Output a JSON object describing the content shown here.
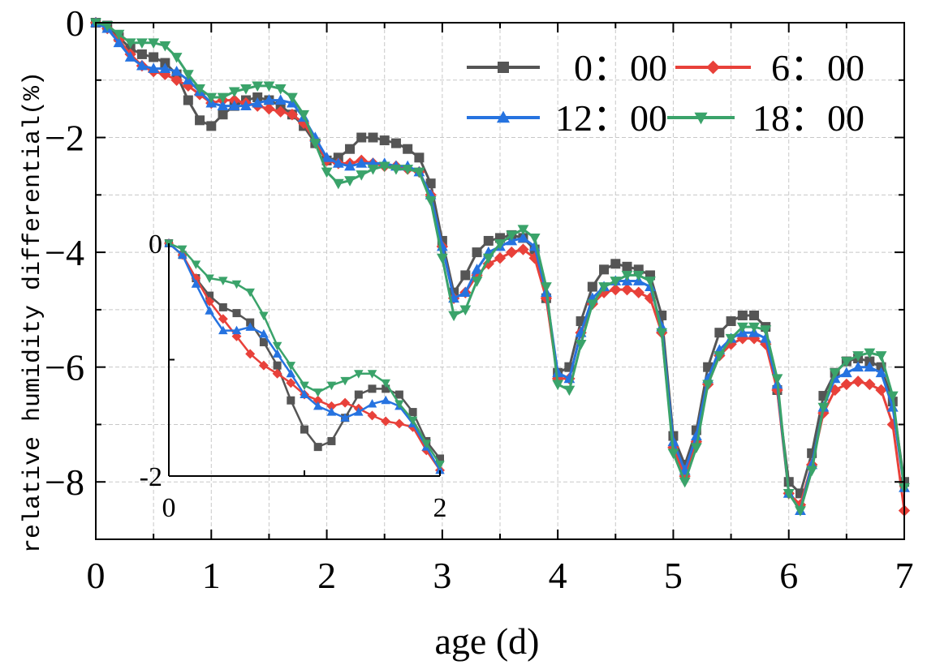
{
  "chart_data": [
    {
      "type": "line",
      "title": "",
      "xlabel": "age (d)",
      "ylabel": "relative humidity differential(%)",
      "xlim": [
        0,
        7
      ],
      "ylim": [
        -9,
        0
      ],
      "x_ticks": [
        "0",
        "1",
        "2",
        "3",
        "4",
        "5",
        "6",
        "7"
      ],
      "y_ticks": [
        "0",
        "−2",
        "−4",
        "−6",
        "−8"
      ],
      "grid": true,
      "legend_position": "top-right",
      "series": [
        {
          "name": "0: 00",
          "color": "#555555",
          "marker": "square",
          "x": [
            0,
            0.1,
            0.2,
            0.3,
            0.4,
            0.5,
            0.6,
            0.7,
            0.8,
            0.9,
            1.0,
            1.1,
            1.2,
            1.3,
            1.4,
            1.5,
            1.6,
            1.7,
            1.8,
            1.9,
            2.0,
            2.1,
            2.2,
            2.3,
            2.4,
            2.5,
            2.6,
            2.7,
            2.8,
            2.9,
            3.0,
            3.1,
            3.2,
            3.3,
            3.4,
            3.5,
            3.6,
            3.7,
            3.8,
            3.9,
            4.0,
            4.1,
            4.2,
            4.3,
            4.4,
            4.5,
            4.6,
            4.7,
            4.8,
            4.9,
            5.0,
            5.1,
            5.2,
            5.3,
            5.4,
            5.5,
            5.6,
            5.7,
            5.8,
            5.9,
            6.0,
            6.1,
            6.2,
            6.3,
            6.4,
            6.5,
            6.6,
            6.7,
            6.8,
            6.9,
            7.0
          ],
          "y": [
            0,
            -0.05,
            -0.25,
            -0.45,
            -0.55,
            -0.6,
            -0.7,
            -0.9,
            -1.35,
            -1.7,
            -1.8,
            -1.6,
            -1.45,
            -1.35,
            -1.3,
            -1.35,
            -1.45,
            -1.6,
            -1.8,
            -2.1,
            -2.4,
            -2.35,
            -2.2,
            -2.0,
            -2.0,
            -2.05,
            -2.1,
            -2.2,
            -2.35,
            -2.8,
            -3.8,
            -4.7,
            -4.4,
            -4.0,
            -3.8,
            -3.75,
            -3.7,
            -3.75,
            -3.95,
            -4.8,
            -6.1,
            -6.0,
            -5.2,
            -4.6,
            -4.3,
            -4.2,
            -4.25,
            -4.3,
            -4.4,
            -5.1,
            -7.2,
            -7.7,
            -7.1,
            -6.0,
            -5.4,
            -5.2,
            -5.1,
            -5.1,
            -5.3,
            -6.4,
            -8.0,
            -8.2,
            -7.5,
            -6.5,
            -6.1,
            -5.9,
            -5.85,
            -5.9,
            -6.0,
            -6.6,
            -8.0
          ]
        },
        {
          "name": "6: 00",
          "color": "#e8413a",
          "marker": "diamond",
          "x": [
            0,
            0.1,
            0.2,
            0.3,
            0.4,
            0.5,
            0.6,
            0.7,
            0.8,
            0.9,
            1.0,
            1.1,
            1.2,
            1.3,
            1.4,
            1.5,
            1.6,
            1.7,
            1.8,
            1.9,
            2.0,
            2.1,
            2.2,
            2.3,
            2.4,
            2.5,
            2.6,
            2.7,
            2.8,
            2.9,
            3.0,
            3.1,
            3.2,
            3.3,
            3.4,
            3.5,
            3.6,
            3.7,
            3.8,
            3.9,
            4.0,
            4.1,
            4.2,
            4.3,
            4.4,
            4.5,
            4.6,
            4.7,
            4.8,
            4.9,
            5.0,
            5.1,
            5.2,
            5.3,
            5.4,
            5.5,
            5.6,
            5.7,
            5.8,
            5.9,
            6.0,
            6.1,
            6.2,
            6.3,
            6.4,
            6.5,
            6.6,
            6.7,
            6.8,
            6.9,
            7.0
          ],
          "y": [
            0,
            -0.1,
            -0.3,
            -0.55,
            -0.75,
            -0.85,
            -0.9,
            -1.0,
            -1.1,
            -1.25,
            -1.4,
            -1.35,
            -1.35,
            -1.4,
            -1.45,
            -1.5,
            -1.55,
            -1.6,
            -1.75,
            -2.05,
            -2.4,
            -2.45,
            -2.45,
            -2.4,
            -2.45,
            -2.5,
            -2.5,
            -2.55,
            -2.6,
            -3.0,
            -3.9,
            -4.8,
            -4.7,
            -4.4,
            -4.2,
            -4.1,
            -4.0,
            -3.95,
            -4.1,
            -4.8,
            -6.2,
            -6.2,
            -5.4,
            -4.9,
            -4.7,
            -4.65,
            -4.65,
            -4.7,
            -4.8,
            -5.4,
            -7.4,
            -7.9,
            -7.3,
            -6.3,
            -5.8,
            -5.6,
            -5.5,
            -5.5,
            -5.6,
            -6.4,
            -8.2,
            -8.4,
            -7.7,
            -6.8,
            -6.4,
            -6.3,
            -6.25,
            -6.3,
            -6.4,
            -7.0,
            -8.5
          ]
        },
        {
          "name": "12: 00",
          "color": "#2673e0",
          "marker": "triangle-up",
          "x": [
            0,
            0.1,
            0.2,
            0.3,
            0.4,
            0.5,
            0.6,
            0.7,
            0.8,
            0.9,
            1.0,
            1.1,
            1.2,
            1.3,
            1.4,
            1.5,
            1.6,
            1.7,
            1.8,
            1.9,
            2.0,
            2.1,
            2.2,
            2.3,
            2.4,
            2.5,
            2.6,
            2.7,
            2.8,
            2.9,
            3.0,
            3.1,
            3.2,
            3.3,
            3.4,
            3.5,
            3.6,
            3.7,
            3.8,
            3.9,
            4.0,
            4.1,
            4.2,
            4.3,
            4.4,
            4.5,
            4.6,
            4.7,
            4.8,
            4.9,
            5.0,
            5.1,
            5.2,
            5.3,
            5.4,
            5.5,
            5.6,
            5.7,
            5.8,
            5.9,
            6.0,
            6.1,
            6.2,
            6.3,
            6.4,
            6.5,
            6.6,
            6.7,
            6.8,
            6.9,
            7.0
          ],
          "y": [
            0,
            -0.1,
            -0.35,
            -0.6,
            -0.75,
            -0.8,
            -0.8,
            -0.85,
            -1.0,
            -1.2,
            -1.4,
            -1.45,
            -1.45,
            -1.45,
            -1.4,
            -1.35,
            -1.35,
            -1.4,
            -1.65,
            -2.0,
            -2.35,
            -2.45,
            -2.5,
            -2.45,
            -2.45,
            -2.45,
            -2.5,
            -2.5,
            -2.6,
            -3.0,
            -3.9,
            -4.8,
            -4.7,
            -4.3,
            -4.0,
            -3.9,
            -3.8,
            -3.75,
            -3.9,
            -4.7,
            -6.1,
            -6.2,
            -5.4,
            -4.8,
            -4.6,
            -4.5,
            -4.5,
            -4.5,
            -4.6,
            -5.3,
            -7.3,
            -7.8,
            -7.2,
            -6.2,
            -5.7,
            -5.5,
            -5.4,
            -5.4,
            -5.5,
            -6.3,
            -8.2,
            -8.5,
            -7.7,
            -6.7,
            -6.2,
            -6.1,
            -6.0,
            -6.0,
            -6.1,
            -6.7,
            -8.1
          ]
        },
        {
          "name": "18: 00",
          "color": "#3aa36a",
          "marker": "triangle-down",
          "x": [
            0,
            0.1,
            0.2,
            0.3,
            0.4,
            0.5,
            0.6,
            0.7,
            0.8,
            0.9,
            1.0,
            1.1,
            1.2,
            1.3,
            1.4,
            1.5,
            1.6,
            1.7,
            1.8,
            1.9,
            2.0,
            2.1,
            2.2,
            2.3,
            2.4,
            2.5,
            2.6,
            2.7,
            2.8,
            2.9,
            3.0,
            3.1,
            3.2,
            3.3,
            3.4,
            3.5,
            3.6,
            3.7,
            3.8,
            3.9,
            4.0,
            4.1,
            4.2,
            4.3,
            4.4,
            4.5,
            4.6,
            4.7,
            4.8,
            4.9,
            5.0,
            5.1,
            5.2,
            5.3,
            5.4,
            5.5,
            5.6,
            5.7,
            5.8,
            5.9,
            6.0,
            6.1,
            6.2,
            6.3,
            6.4,
            6.5,
            6.6,
            6.7,
            6.8,
            6.9,
            7.0
          ],
          "y": [
            0,
            -0.05,
            -0.2,
            -0.35,
            -0.35,
            -0.35,
            -0.4,
            -0.6,
            -0.9,
            -1.15,
            -1.3,
            -1.3,
            -1.2,
            -1.15,
            -1.1,
            -1.1,
            -1.15,
            -1.3,
            -1.6,
            -2.1,
            -2.6,
            -2.8,
            -2.75,
            -2.65,
            -2.55,
            -2.5,
            -2.55,
            -2.55,
            -2.6,
            -3.1,
            -4.1,
            -5.1,
            -5.0,
            -4.5,
            -4.1,
            -3.85,
            -3.7,
            -3.6,
            -3.75,
            -4.6,
            -6.3,
            -6.4,
            -5.6,
            -4.9,
            -4.6,
            -4.5,
            -4.4,
            -4.4,
            -4.5,
            -5.4,
            -7.5,
            -8.0,
            -7.4,
            -6.3,
            -5.8,
            -5.5,
            -5.3,
            -5.3,
            -5.35,
            -6.2,
            -8.2,
            -8.5,
            -7.8,
            -6.7,
            -6.1,
            -5.9,
            -5.8,
            -5.75,
            -5.8,
            -6.5,
            -8.1
          ]
        }
      ],
      "legend": [
        "0: 00",
        "6: 00",
        "12: 00",
        "18: 00"
      ],
      "legend_labels_display": [
        "0：00",
        "6：00",
        "12：00",
        "18：00"
      ]
    },
    {
      "type": "line",
      "inset": true,
      "xlim": [
        0,
        2
      ],
      "ylim": [
        -2,
        0
      ],
      "x_ticks": [
        "0",
        "2"
      ],
      "y_ticks": [
        "0",
        "-2"
      ],
      "grid": false,
      "series": [
        {
          "name": "0: 00",
          "color": "#555555",
          "marker": "square",
          "x": [
            0,
            0.1,
            0.2,
            0.3,
            0.4,
            0.5,
            0.6,
            0.7,
            0.8,
            0.9,
            1.0,
            1.1,
            1.2,
            1.3,
            1.4,
            1.5,
            1.6,
            1.7,
            1.8,
            1.9,
            2.0
          ],
          "y": [
            0,
            -0.1,
            -0.3,
            -0.45,
            -0.55,
            -0.6,
            -0.68,
            -0.85,
            -1.05,
            -1.35,
            -1.6,
            -1.75,
            -1.7,
            -1.5,
            -1.3,
            -1.25,
            -1.25,
            -1.3,
            -1.45,
            -1.7,
            -1.85
          ]
        },
        {
          "name": "6: 00",
          "color": "#e8413a",
          "marker": "diamond",
          "x": [
            0,
            0.1,
            0.2,
            0.3,
            0.4,
            0.5,
            0.6,
            0.7,
            0.8,
            0.9,
            1.0,
            1.1,
            1.2,
            1.3,
            1.4,
            1.5,
            1.6,
            1.7,
            1.8,
            1.9,
            2.0
          ],
          "y": [
            0,
            -0.1,
            -0.3,
            -0.5,
            -0.65,
            -0.8,
            -0.95,
            -1.05,
            -1.12,
            -1.2,
            -1.3,
            -1.35,
            -1.4,
            -1.37,
            -1.42,
            -1.48,
            -1.53,
            -1.55,
            -1.58,
            -1.78,
            -1.95
          ]
        },
        {
          "name": "12: 00",
          "color": "#2673e0",
          "marker": "triangle-up",
          "x": [
            0,
            0.1,
            0.2,
            0.3,
            0.4,
            0.5,
            0.6,
            0.7,
            0.8,
            0.9,
            1.0,
            1.1,
            1.2,
            1.3,
            1.4,
            1.5,
            1.6,
            1.7,
            1.8,
            1.9,
            2.0
          ],
          "y": [
            0,
            -0.1,
            -0.35,
            -0.58,
            -0.75,
            -0.75,
            -0.72,
            -0.78,
            -0.95,
            -1.12,
            -1.3,
            -1.4,
            -1.45,
            -1.5,
            -1.45,
            -1.38,
            -1.35,
            -1.4,
            -1.55,
            -1.75,
            -1.95
          ]
        },
        {
          "name": "18: 00",
          "color": "#3aa36a",
          "marker": "triangle-down",
          "x": [
            0,
            0.1,
            0.2,
            0.3,
            0.4,
            0.5,
            0.6,
            0.7,
            0.8,
            0.9,
            1.0,
            1.1,
            1.2,
            1.3,
            1.4,
            1.5,
            1.6,
            1.7,
            1.8,
            1.9,
            2.0
          ],
          "y": [
            0,
            -0.05,
            -0.18,
            -0.3,
            -0.32,
            -0.35,
            -0.42,
            -0.62,
            -0.88,
            -1.05,
            -1.22,
            -1.28,
            -1.22,
            -1.18,
            -1.12,
            -1.12,
            -1.2,
            -1.38,
            -1.52,
            -1.72,
            -1.9
          ]
        }
      ]
    }
  ]
}
